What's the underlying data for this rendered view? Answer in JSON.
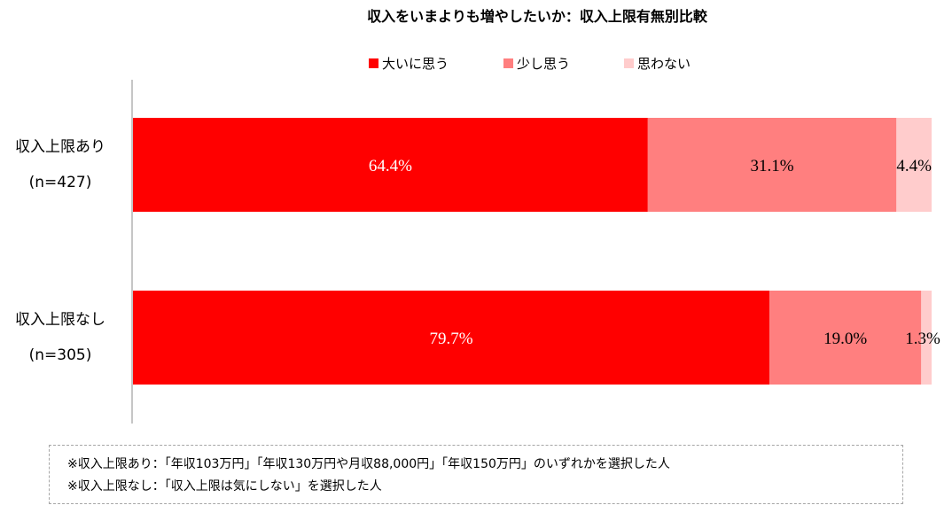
{
  "chart_data": {
    "type": "bar",
    "orientation": "horizontal",
    "stacked": true,
    "percent_stacked": true,
    "title": "収入をいまよりも増やしたいか：収入上限有無別比較",
    "categories": [
      {
        "label": "収入上限あり",
        "n_label": "(n=427)"
      },
      {
        "label": "収入上限なし",
        "n_label": "(n=305)"
      }
    ],
    "series": [
      {
        "name": "大いに思う",
        "color": "#ff0000",
        "label_color": "#ffffff",
        "values": [
          64.4,
          79.7
        ],
        "labels": [
          "64.4%",
          "79.7%"
        ]
      },
      {
        "name": "少し思う",
        "color": "#ff7f7f",
        "label_color": "#000000",
        "values": [
          31.1,
          19.0
        ],
        "labels": [
          "31.1%",
          "19.0%"
        ]
      },
      {
        "name": "思わない",
        "color": "#ffcccc",
        "label_color": "#000000",
        "values": [
          4.4,
          1.3
        ],
        "labels": [
          "4.4%",
          "1.3%"
        ]
      }
    ],
    "xlim": [
      0,
      100
    ],
    "legend_position": "top",
    "grid": false
  },
  "notes": [
    "※収入上限あり：「年収103万円」「年収130万円や月収88,000円」「年収150万円」のいずれかを選択した人",
    "※収入上限なし：「収入上限は気にしない」を選択した人"
  ]
}
